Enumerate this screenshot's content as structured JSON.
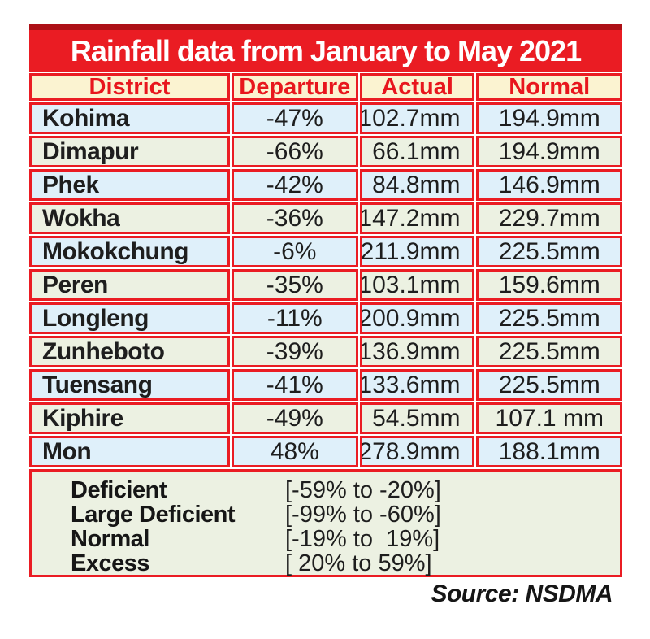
{
  "title": "Rainfall data from January to May 2021",
  "source": "Source: NSDMA",
  "table": {
    "columns": [
      "District",
      "Departure",
      "Actual",
      "Normal"
    ],
    "rows": [
      {
        "district": "Kohima",
        "departure": "-47%",
        "actual": "102.7mm",
        "normal": "194.9mm"
      },
      {
        "district": "Dimapur",
        "departure": "-66%",
        "actual": "66.1mm",
        "normal": "194.9mm"
      },
      {
        "district": "Phek",
        "departure": "-42%",
        "actual": "84.8mm",
        "normal": "146.9mm"
      },
      {
        "district": "Wokha",
        "departure": "-36%",
        "actual": "147.2mm",
        "normal": "229.7mm"
      },
      {
        "district": "Mokokchung",
        "departure": "-6%",
        "actual": "211.9mm",
        "normal": "225.5mm"
      },
      {
        "district": "Peren",
        "departure": "-35%",
        "actual": "103.1mm",
        "normal": "159.6mm"
      },
      {
        "district": "Longleng",
        "departure": "-11%",
        "actual": "200.9mm",
        "normal": "225.5mm"
      },
      {
        "district": "Zunheboto",
        "departure": "-39%",
        "actual": "136.9mm",
        "normal": "225.5mm"
      },
      {
        "district": "Tuensang",
        "departure": "-41%",
        "actual": "133.6mm",
        "normal": "225.5mm"
      },
      {
        "district": "Kiphire",
        "departure": "-49%",
        "actual": "54.5mm",
        "normal": "107.1 mm"
      },
      {
        "district": "Mon",
        "departure": "48%",
        "actual": "278.9mm",
        "normal": "188.1mm"
      }
    ]
  },
  "legend": {
    "items": [
      {
        "label": "Deficient",
        "range": "[-59% to -20%]"
      },
      {
        "label": "Large Deficient",
        "range": "[-99% to -60%]"
      },
      {
        "label": "Normal",
        "range": "[-19% to  19%]"
      },
      {
        "label": "Excess",
        "range": "[ 20% to 59%]"
      }
    ]
  },
  "colors": {
    "accent_red": "#ea1c23",
    "dark_red_top": "#ad1016",
    "header_bg": "#fbf3d1",
    "header_text": "#e8161d",
    "row_blue": "#dff0fa",
    "row_green": "#ecf1e2",
    "title_text": "#ffffff",
    "body_text": "#1e1e1e"
  },
  "chart_data": {
    "type": "table",
    "title": "Rainfall data from January to May 2021",
    "columns": [
      "District",
      "Departure",
      "Actual",
      "Normal"
    ],
    "rows": [
      [
        "Kohima",
        "-47%",
        "102.7mm",
        "194.9mm"
      ],
      [
        "Dimapur",
        "-66%",
        "66.1mm",
        "194.9mm"
      ],
      [
        "Phek",
        "-42%",
        "84.8mm",
        "146.9mm"
      ],
      [
        "Wokha",
        "-36%",
        "147.2mm",
        "229.7mm"
      ],
      [
        "Mokokchung",
        "-6%",
        "211.9mm",
        "225.5mm"
      ],
      [
        "Peren",
        "-35%",
        "103.1mm",
        "159.6mm"
      ],
      [
        "Longleng",
        "-11%",
        "200.9mm",
        "225.5mm"
      ],
      [
        "Zunheboto",
        "-39%",
        "136.9mm",
        "225.5mm"
      ],
      [
        "Tuensang",
        "-41%",
        "133.6mm",
        "225.5mm"
      ],
      [
        "Kiphire",
        "-49%",
        "54.5mm",
        "107.1 mm"
      ],
      [
        "Mon",
        "48%",
        "278.9mm",
        "188.1mm"
      ]
    ],
    "legend_categories": [
      {
        "label": "Deficient",
        "range": "[-59% to -20%]"
      },
      {
        "label": "Large Deficient",
        "range": "[-99% to -60%]"
      },
      {
        "label": "Normal",
        "range": "[-19% to  19%]"
      },
      {
        "label": "Excess",
        "range": "[ 20% to 59%]"
      }
    ],
    "source": "Source: NSDMA"
  }
}
